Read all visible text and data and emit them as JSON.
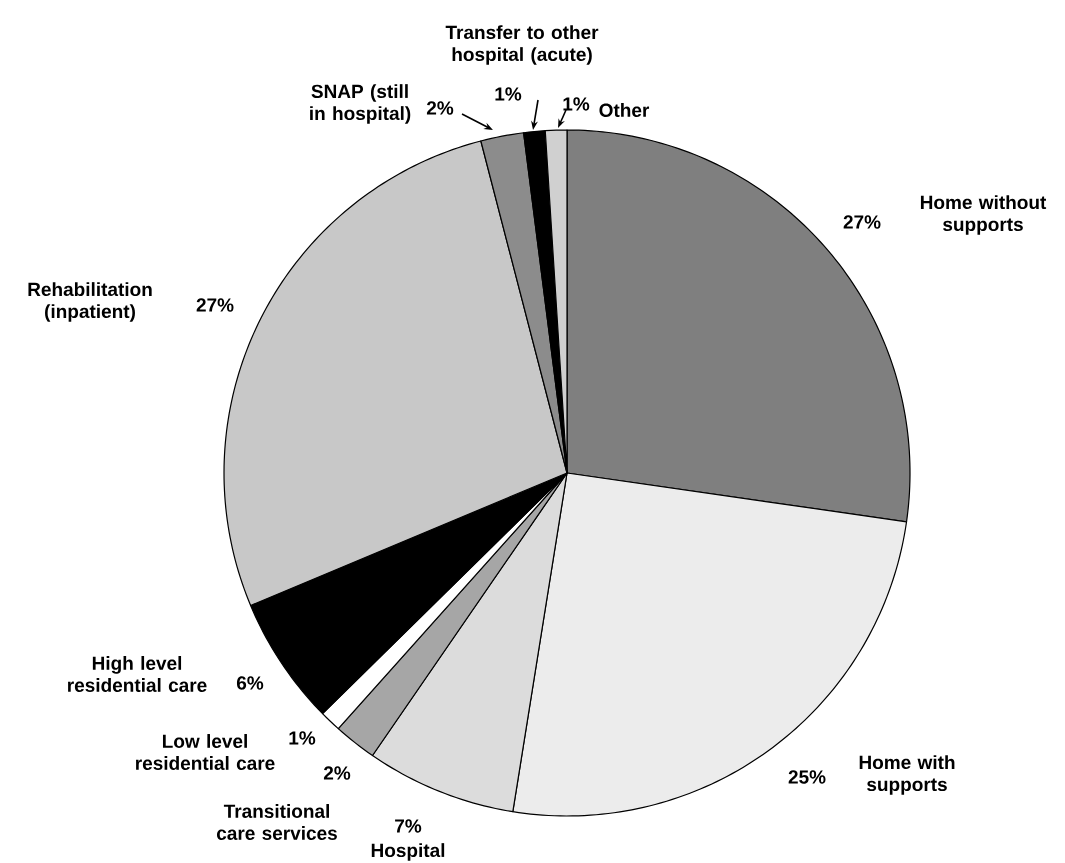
{
  "chart_data": {
    "type": "pie",
    "categories": [
      "Home without supports",
      "Home with supports",
      "Hospital",
      "Transitional care services",
      "Low level residential care",
      "High level residential care",
      "Rehabilitation (inpatient)",
      "SNAP (still in hospital)",
      "Transfer to other hospital (acute)",
      "Other"
    ],
    "values": [
      27,
      25,
      7,
      2,
      1,
      6,
      27,
      2,
      1,
      1
    ],
    "value_labels": [
      "27%",
      "25%",
      "7%",
      "2%",
      "1%",
      "6%",
      "27%",
      "2%",
      "1%",
      "1%"
    ],
    "colors": [
      "#7f7f7f",
      "#ececec",
      "#dcdcdc",
      "#a6a6a6",
      "#ffffff",
      "#000000",
      "#c8c8c8",
      "#8c8c8c",
      "#000000",
      "#d0d0d0"
    ]
  }
}
